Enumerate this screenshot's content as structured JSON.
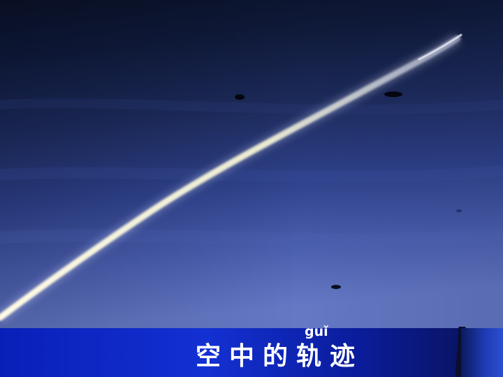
{
  "caption": {
    "text": "空中的轨迹",
    "pinyin": "guǐ"
  },
  "colors": {
    "sky_top": "#0a1428",
    "sky_bottom": "#5a6fb8",
    "caption_bar": "#1330d2",
    "contrail": "#f2f1df"
  }
}
